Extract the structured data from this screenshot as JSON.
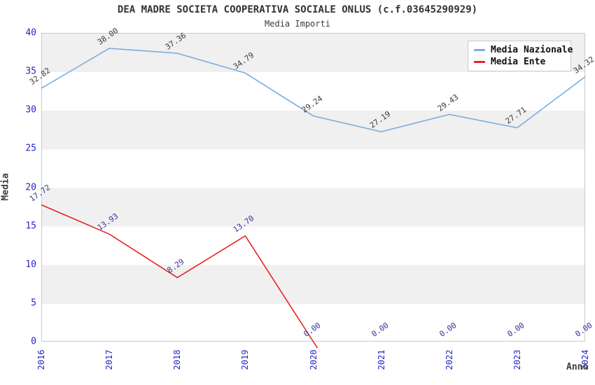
{
  "header": {
    "title": "DEA MADRE SOCIETA COOPERATIVA SOCIALE ONLUS (c.f.03645290929)",
    "subtitle": "Media Importi"
  },
  "axes": {
    "y_title": "Media",
    "x_title": "Anno",
    "y_ticks": [
      0,
      5,
      10,
      15,
      20,
      25,
      30,
      35,
      40
    ],
    "tick_color": "#2525cd"
  },
  "legend": {
    "items": [
      {
        "label": "Media Nazionale",
        "color": "#7aaede"
      },
      {
        "label": "Media Ente",
        "color": "#e42524"
      }
    ]
  },
  "chart_data": {
    "type": "line",
    "title": "DEA MADRE SOCIETA COOPERATIVA SOCIALE ONLUS (c.f.03645290929)",
    "subtitle": "Media Importi",
    "xlabel": "Anno",
    "ylabel": "Media",
    "categories": [
      2016,
      2017,
      2018,
      2019,
      2020,
      2021,
      2022,
      2023,
      2024
    ],
    "series": [
      {
        "name": "Media Nazionale",
        "color": "#7aaede",
        "label_color": "#3a3a3a",
        "values": [
          32.82,
          38.0,
          37.36,
          34.79,
          29.24,
          27.19,
          29.43,
          27.71,
          34.32
        ]
      },
      {
        "name": "Media Ente",
        "color": "#e42524",
        "label_color": "#333399",
        "values": [
          17.72,
          13.93,
          8.29,
          13.7,
          0.0,
          0.0,
          0.0,
          0.0,
          0.0
        ]
      }
    ],
    "ylim": [
      0,
      40
    ],
    "grid": "alternating-horizontal-bands",
    "band_colors": [
      "#f0f0f0",
      "#ffffff"
    ],
    "legend_position": "top-right",
    "point_label_decimals": 2
  }
}
